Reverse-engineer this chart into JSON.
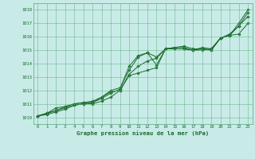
{
  "title": "Graphe pression niveau de la mer (hPa)",
  "xlim": [
    -0.5,
    23.5
  ],
  "ylim": [
    1009.5,
    1018.5
  ],
  "yticks": [
    1010,
    1011,
    1012,
    1013,
    1014,
    1015,
    1016,
    1017,
    1018
  ],
  "xticks": [
    0,
    1,
    2,
    3,
    4,
    5,
    6,
    7,
    8,
    9,
    10,
    11,
    12,
    13,
    14,
    15,
    16,
    17,
    18,
    19,
    20,
    21,
    22,
    23
  ],
  "bg_color": "#c8ebe8",
  "grid_color": "#5aaa78",
  "line_color": "#1a6b2a",
  "series": [
    [
      1010.1,
      1010.3,
      1010.5,
      1010.7,
      1010.9,
      1011.0,
      1011.1,
      1011.4,
      1011.8,
      1012.1,
      1013.8,
      1014.6,
      1014.8,
      1014.5,
      1015.1,
      1015.1,
      1015.1,
      1015.0,
      1015.1,
      1015.0,
      1015.9,
      1016.1,
      1017.0,
      1018.0
    ],
    [
      1010.1,
      1010.2,
      1010.4,
      1010.6,
      1010.9,
      1011.0,
      1011.0,
      1011.2,
      1011.5,
      1012.0,
      1013.2,
      1013.8,
      1014.2,
      1014.4,
      1015.1,
      1015.2,
      1015.3,
      1015.1,
      1015.1,
      1015.0,
      1015.9,
      1016.1,
      1016.8,
      1017.8
    ],
    [
      1010.1,
      1010.3,
      1010.5,
      1010.8,
      1011.0,
      1011.1,
      1011.1,
      1011.5,
      1011.9,
      1012.0,
      1013.1,
      1013.3,
      1013.5,
      1013.7,
      1015.1,
      1015.2,
      1015.2,
      1015.0,
      1015.0,
      1015.1,
      1015.9,
      1016.2,
      1016.8,
      1017.5
    ],
    [
      1010.1,
      1010.3,
      1010.7,
      1010.8,
      1011.0,
      1011.1,
      1011.2,
      1011.5,
      1012.0,
      1012.2,
      1013.5,
      1014.5,
      1014.8,
      1013.9,
      1015.1,
      1015.1,
      1015.1,
      1015.0,
      1015.2,
      1015.1,
      1015.9,
      1016.1,
      1016.2,
      1017.0
    ]
  ],
  "tick_fontsize": 4.0,
  "title_fontsize": 5.2,
  "marker_size": 1.8,
  "line_width": 0.7
}
